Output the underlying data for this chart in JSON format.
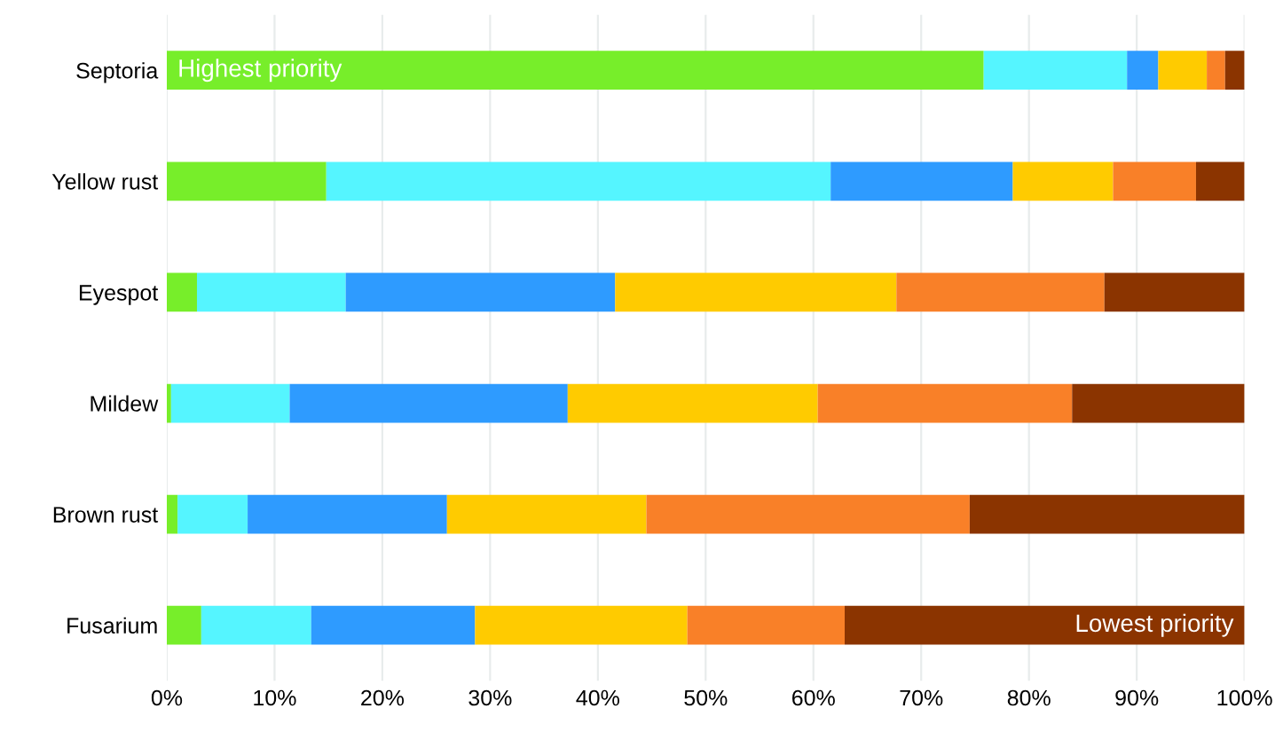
{
  "chart_data": {
    "type": "bar",
    "orientation": "horizontal",
    "stacked": true,
    "categories": [
      "Septoria",
      "Yellow rust",
      "Eyespot",
      "Mildew",
      "Brown rust",
      "Fusarium"
    ],
    "series": [
      {
        "color": "#77ee2a",
        "values": [
          75.8,
          14.8,
          2.8,
          0.4,
          1.0,
          3.2
        ]
      },
      {
        "color": "#55f5ff",
        "values": [
          13.3,
          46.8,
          13.8,
          11.0,
          6.5,
          10.2
        ]
      },
      {
        "color": "#2e9bff",
        "values": [
          2.9,
          16.9,
          25.0,
          25.8,
          18.5,
          15.2
        ]
      },
      {
        "color": "#ffcb00",
        "values": [
          4.5,
          9.3,
          26.1,
          23.2,
          18.5,
          19.7
        ]
      },
      {
        "color": "#f98028",
        "values": [
          1.7,
          7.7,
          19.3,
          23.6,
          30.0,
          14.6
        ]
      },
      {
        "color": "#8b3400",
        "values": [
          1.8,
          4.5,
          13.0,
          16.0,
          25.5,
          37.1
        ]
      }
    ],
    "xlim": [
      0,
      100
    ],
    "xticks": [
      {
        "value": 0,
        "label": "0%"
      },
      {
        "value": 10,
        "label": "10%"
      },
      {
        "value": 20,
        "label": "20%"
      },
      {
        "value": 30,
        "label": "30%"
      },
      {
        "value": 40,
        "label": "40%"
      },
      {
        "value": 50,
        "label": "50%"
      },
      {
        "value": 60,
        "label": "60%"
      },
      {
        "value": 70,
        "label": "70%"
      },
      {
        "value": 80,
        "label": "80%"
      },
      {
        "value": 90,
        "label": "90%"
      },
      {
        "value": 100,
        "label": "100%"
      }
    ],
    "grid": "x",
    "annotations": [
      {
        "text": "Highest priority",
        "x": 0,
        "y": "Septoria"
      },
      {
        "text": "Lowest priority",
        "x": 100,
        "y": "Fusarium"
      }
    ]
  }
}
